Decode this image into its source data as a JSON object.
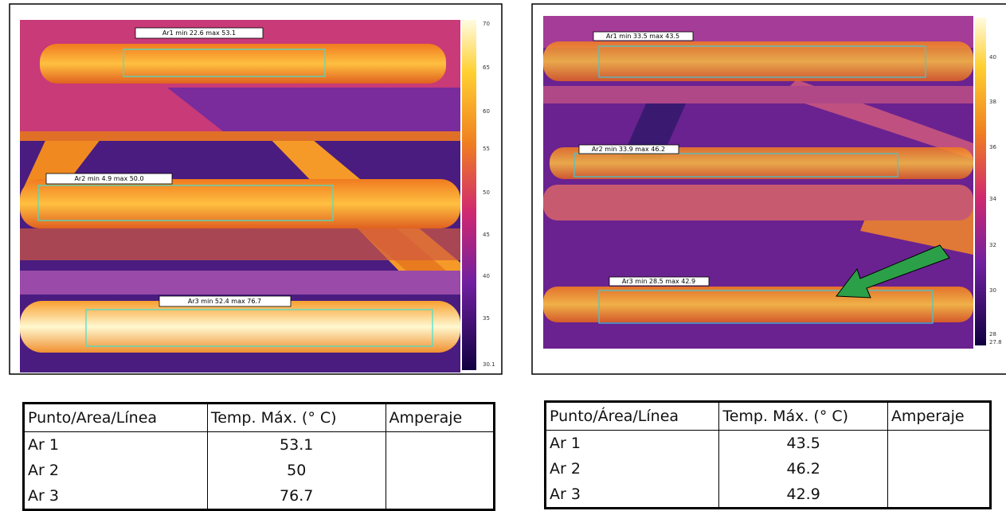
{
  "panels": [
    {
      "area_labels": [
        "Ar1 min 22.6 max 53.1",
        "Ar2 min 4.9 max 50.0",
        "Ar3 min 52.4 max 76.7"
      ],
      "scale_labels": [
        "70",
        "65",
        "60",
        "55",
        "50",
        "45",
        "40",
        "35",
        "30.1"
      ],
      "table": {
        "header": [
          "Punto/Area/Línea",
          "Temp. Máx. (° C)",
          "Amperaje"
        ],
        "rows": [
          [
            "Ar 1",
            "53.1"
          ],
          [
            "Ar 2",
            "50"
          ],
          [
            "Ar 3",
            "76.7"
          ]
        ]
      }
    },
    {
      "area_labels": [
        "Ar1 min 33.5 max 43.5",
        "Ar2 min 33.9 max 46.2",
        "Ar3 min 28.5 max 42.9"
      ],
      "scale_labels": [
        "40",
        "38",
        "36",
        "34",
        "32",
        "30",
        "28",
        "27.8"
      ],
      "table": {
        "header": [
          "Punto/Área/Línea",
          "Temp. Máx. (° C)",
          "Amperaje"
        ],
        "rows": [
          [
            "Ar 1",
            "43.5"
          ],
          [
            "Ar 2",
            "46.2"
          ],
          [
            "Ar 3",
            "42.9"
          ]
        ]
      }
    }
  ]
}
